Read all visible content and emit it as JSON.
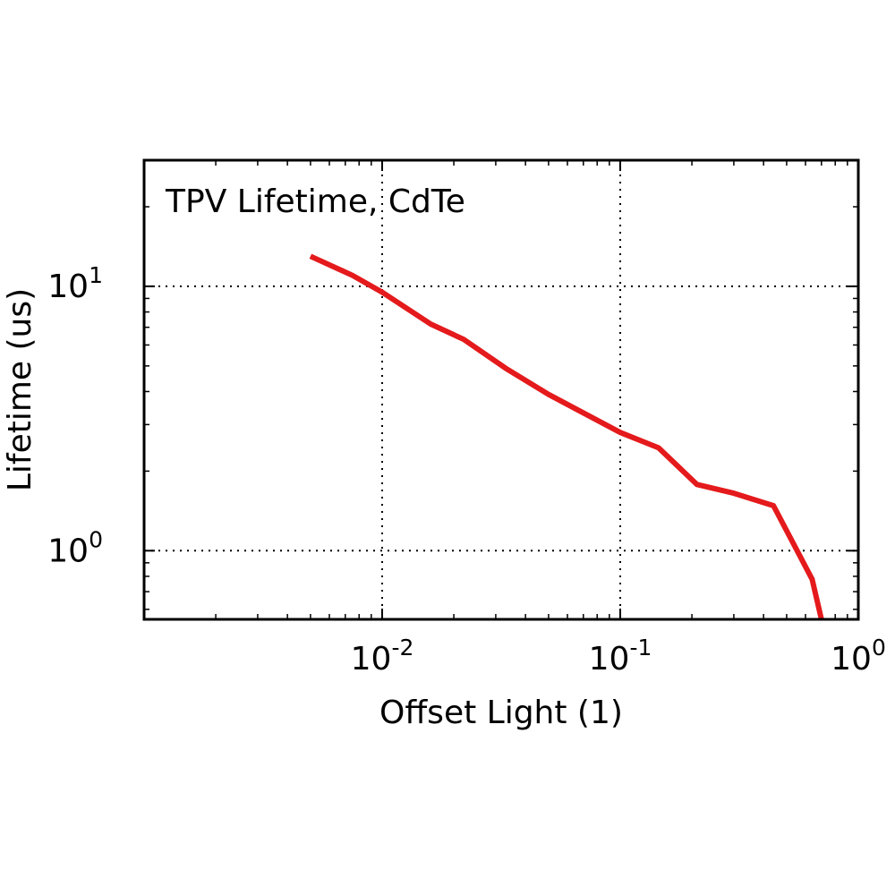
{
  "chart_data": {
    "type": "line",
    "title": "",
    "annotation": "TPV Lifetime, CdTe",
    "xlabel": "Offset Light (1)",
    "ylabel": "Lifetime (us)",
    "x_scale": "log",
    "y_scale": "log",
    "xlim": [
      0.001,
      1.0
    ],
    "ylim": [
      0.55,
      30
    ],
    "grid": true,
    "x_ticks": [
      {
        "value": 0.01,
        "base": "10",
        "exp": "-2"
      },
      {
        "value": 0.1,
        "base": "10",
        "exp": "-1"
      },
      {
        "value": 1.0,
        "base": "10",
        "exp": "0"
      }
    ],
    "y_ticks": [
      {
        "value": 1,
        "base": "10",
        "exp": "0"
      },
      {
        "value": 10,
        "base": "10",
        "exp": "1"
      }
    ],
    "series": [
      {
        "color": "#e41a1c",
        "x": [
          0.005,
          0.0075,
          0.01,
          0.016,
          0.022,
          0.033,
          0.05,
          0.1,
          0.145,
          0.21,
          0.3,
          0.44,
          0.64,
          0.7
        ],
        "y": [
          13.0,
          11.0,
          9.5,
          7.2,
          6.3,
          4.9,
          3.9,
          2.8,
          2.45,
          1.78,
          1.65,
          1.48,
          0.78,
          0.55
        ]
      }
    ]
  }
}
